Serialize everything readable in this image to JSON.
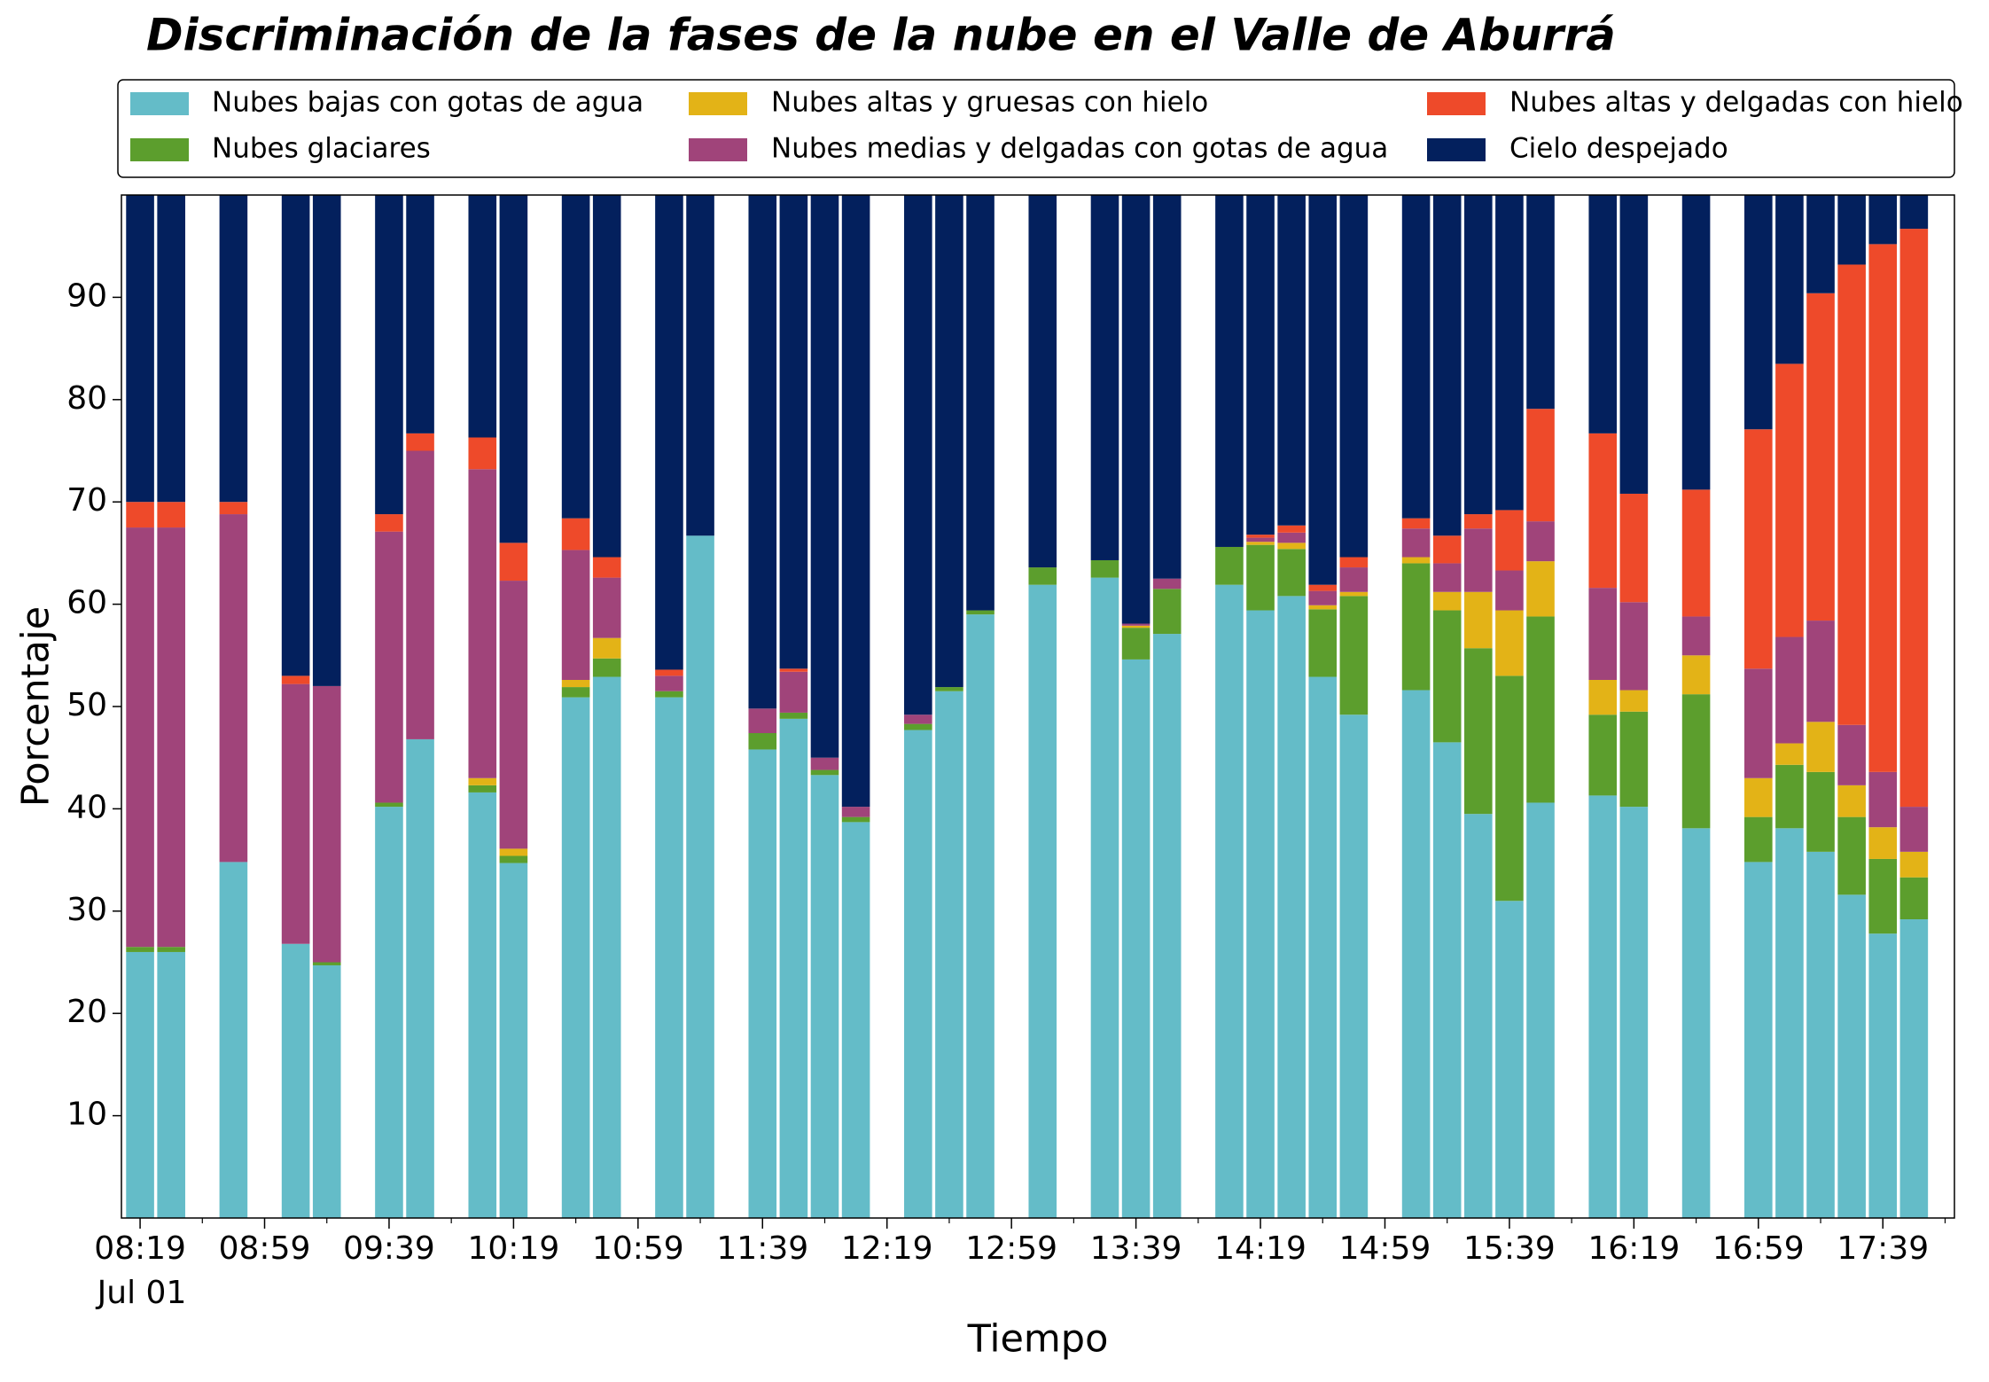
{
  "chart_data": {
    "type": "stacked_bar",
    "title": "Discriminación de la fases de la nube en el Valle de Aburrá",
    "xlabel": "Tiempo",
    "ylabel": "Porcentaje",
    "x_date_label": "Jul 01",
    "x": [
      "08:19",
      "08:29",
      "08:49",
      "09:09",
      "09:19",
      "09:39",
      "09:49",
      "10:09",
      "10:19",
      "10:39",
      "10:49",
      "11:09",
      "11:19",
      "11:39",
      "11:49",
      "11:59",
      "12:09",
      "12:29",
      "12:39",
      "12:49",
      "13:09",
      "13:29",
      "13:39",
      "13:49",
      "14:09",
      "14:19",
      "14:29",
      "14:39",
      "14:49",
      "15:09",
      "15:19",
      "15:29",
      "15:39",
      "15:49",
      "16:09",
      "16:19",
      "16:39",
      "16:59",
      "17:09",
      "17:19",
      "17:29",
      "17:39",
      "17:49"
    ],
    "series": [
      {
        "name": "Nubes bajas con gotas de agua",
        "color": "#64bcc8",
        "values": [
          26,
          26,
          34.8,
          26.8,
          24.7,
          40.2,
          46.8,
          41.6,
          34.7,
          50.9,
          52.9,
          50.9,
          66.7,
          45.8,
          48.8,
          43.3,
          38.7,
          47.7,
          51.5,
          59,
          61.9,
          62.6,
          54.6,
          57.1,
          61.9,
          59.4,
          60.8,
          52.9,
          49.2,
          51.6,
          46.5,
          39.5,
          31,
          40.6,
          41.3,
          40.2,
          38.1,
          34.8,
          38.1,
          35.8,
          31.6,
          27.8,
          29.2
        ]
      },
      {
        "name": "Nubes glaciares",
        "color": "#5c9e2d",
        "values": [
          0.5,
          0.5,
          0,
          0,
          0.3,
          0.4,
          0,
          0.7,
          0.7,
          1,
          1.8,
          0.6,
          0,
          1.6,
          0.6,
          0.5,
          0.5,
          0.6,
          0.4,
          0.4,
          1.7,
          1.7,
          3.1,
          4.4,
          3.7,
          6.4,
          4.6,
          6.6,
          11.6,
          12.4,
          12.9,
          16.2,
          22,
          18.2,
          7.9,
          9.3,
          13.1,
          4.4,
          6.2,
          7.8,
          7.6,
          7.3,
          4.1
        ]
      },
      {
        "name": "Nubes altas y gruesas con hielo",
        "color": "#e3b317",
        "values": [
          0,
          0,
          0,
          0,
          0,
          0,
          0,
          0.7,
          0.7,
          0.7,
          2,
          0,
          0,
          0,
          0,
          0,
          0,
          0,
          0,
          0,
          0,
          0,
          0.2,
          0,
          0,
          0.3,
          0.6,
          0.4,
          0.4,
          0.6,
          1.8,
          5.5,
          6.4,
          5.4,
          3.4,
          2.1,
          3.8,
          3.8,
          2.1,
          4.9,
          3.1,
          3.1,
          2.5
        ]
      },
      {
        "name": "Nubes medias y delgadas con gotas de agua",
        "color": "#a0447a",
        "values": [
          41,
          41,
          34,
          25.4,
          27,
          26.5,
          28.2,
          30.2,
          26.2,
          12.7,
          5.9,
          1.5,
          0,
          2.4,
          4,
          1.2,
          1,
          0.9,
          0,
          0,
          0,
          0,
          0.2,
          1,
          0,
          0.4,
          1,
          1.4,
          2.4,
          2.8,
          2.8,
          6.2,
          3.9,
          3.9,
          9,
          8.6,
          3.8,
          10.7,
          10.4,
          9.9,
          5.9,
          5.4,
          4.4
        ]
      },
      {
        "name": "Nubes altas y delgadas con hielo",
        "color": "#ee4a2a",
        "values": [
          2.5,
          2.5,
          1.2,
          0.8,
          0,
          1.7,
          1.7,
          3.1,
          3.7,
          3.1,
          2,
          0.6,
          0,
          0,
          0.3,
          0,
          0,
          0,
          0,
          0,
          0,
          0,
          0,
          0,
          0,
          0.3,
          0.7,
          0.6,
          1,
          1,
          2.7,
          1.4,
          5.9,
          11,
          15.1,
          10.6,
          12.4,
          23.4,
          26.7,
          32,
          45,
          51.6,
          56.5
        ]
      },
      {
        "name": "Cielo despejado",
        "color": "#03205d",
        "values": [
          30,
          30,
          30,
          47,
          48,
          31.2,
          23.3,
          23.7,
          34,
          31.6,
          35.4,
          46.4,
          33.3,
          50.2,
          46.3,
          55,
          59.8,
          50.8,
          48.1,
          40.6,
          36.4,
          35.7,
          41.9,
          37.5,
          34.4,
          33.2,
          32.3,
          38.1,
          35.4,
          31.6,
          33.3,
          31.2,
          30.8,
          20.9,
          23.3,
          29.2,
          28.8,
          22.9,
          16.5,
          9.6,
          6.8,
          4.8,
          3.3
        ]
      }
    ],
    "xlim": [
      "08:13",
      "18:02"
    ],
    "xticks": [
      "08:19",
      "08:59",
      "09:39",
      "10:19",
      "10:59",
      "11:39",
      "12:19",
      "12:59",
      "13:39",
      "14:19",
      "14:59",
      "15:39",
      "16:19",
      "16:59",
      "17:39"
    ],
    "xminor_ticks": [
      "08:39",
      "09:19",
      "09:59",
      "10:39",
      "11:19",
      "11:59",
      "12:39",
      "13:19",
      "13:59",
      "14:39",
      "15:19",
      "15:59",
      "16:39",
      "17:19",
      "17:59"
    ],
    "ylim": [
      0,
      100
    ],
    "yticks": [
      10,
      20,
      30,
      40,
      50,
      60,
      70,
      80,
      90
    ]
  }
}
